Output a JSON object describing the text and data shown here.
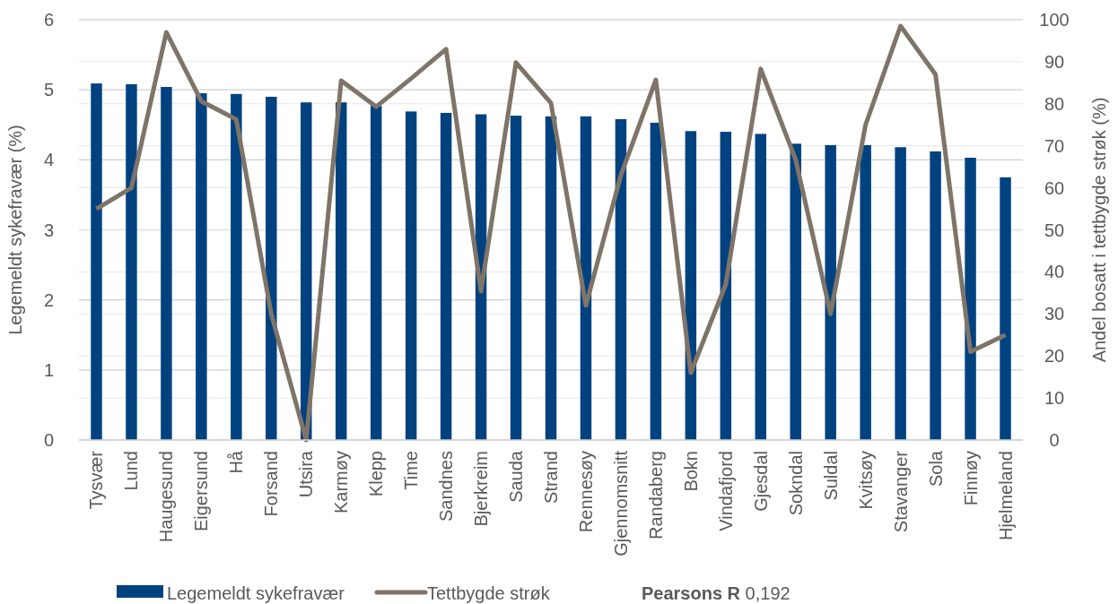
{
  "chart_data": {
    "type": "bar",
    "categories": [
      "Tysvær",
      "Lund",
      "Haugesund",
      "Eigersund",
      "Hå",
      "Forsand",
      "Utsira",
      "Karmøy",
      "Klepp",
      "Time",
      "Sandnes",
      "Bjerkreim",
      "Sauda",
      "Strand",
      "Rennesøy",
      "Gjennomsnitt",
      "Randaberg",
      "Bokn",
      "Vindafjord",
      "Gjesdal",
      "Sokndal",
      "Suldal",
      "Kvitsøy",
      "Stavanger",
      "Sola",
      "Finnøy",
      "Hjelmeland"
    ],
    "series": [
      {
        "name": "Legemeldt sykefravær",
        "color": "#004280",
        "values": [
          5.09,
          5.08,
          5.04,
          4.95,
          4.94,
          4.9,
          4.82,
          4.82,
          4.77,
          4.69,
          4.67,
          4.65,
          4.63,
          4.62,
          4.62,
          4.58,
          4.53,
          4.41,
          4.4,
          4.37,
          4.23,
          4.21,
          4.21,
          4.18,
          4.12,
          4.03,
          3.75
        ]
      },
      {
        "name": "Tettbygde strøk",
        "type": "line",
        "axis": "y2",
        "color": "#7f7468",
        "values": [
          55,
          60,
          97,
          80.6,
          76.3,
          30,
          0,
          85.5,
          79.3,
          86,
          93,
          35.4,
          89.8,
          80.2,
          32,
          63,
          85.7,
          16,
          37,
          88.3,
          66.7,
          30,
          75,
          98.5,
          87,
          21,
          25
        ]
      }
    ],
    "ylabel": "Legemeldt sykefravær (%)",
    "y2label": "Andel bosatt i tettbygde strøk (%)",
    "ylim": [
      0,
      6
    ],
    "yticks": [
      0,
      1,
      2,
      3,
      4,
      5,
      6
    ],
    "y2lim": [
      0,
      100
    ],
    "y2ticks": [
      0,
      10,
      20,
      30,
      40,
      50,
      60,
      70,
      80,
      90,
      100
    ],
    "grid": true,
    "legend": "bottom",
    "annotations": [
      "Pearsons R 0,192"
    ]
  }
}
